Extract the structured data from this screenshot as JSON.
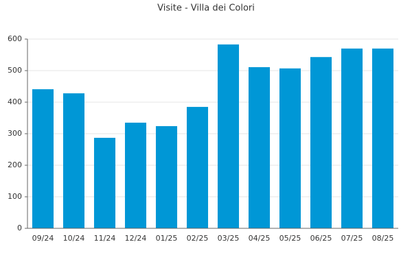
{
  "chart_data": {
    "type": "bar",
    "title": "Visite - Villa dei Colori",
    "categories": [
      "09/24",
      "10/24",
      "11/24",
      "12/24",
      "01/25",
      "02/25",
      "03/25",
      "04/25",
      "05/25",
      "06/25",
      "07/25",
      "08/25"
    ],
    "values": [
      441,
      428,
      287,
      335,
      324,
      385,
      583,
      511,
      507,
      543,
      570,
      570
    ],
    "color": "#0097d6",
    "ylim": [
      0,
      600
    ],
    "yticks": [
      0,
      100,
      200,
      300,
      400,
      500,
      600
    ],
    "grid": true
  }
}
